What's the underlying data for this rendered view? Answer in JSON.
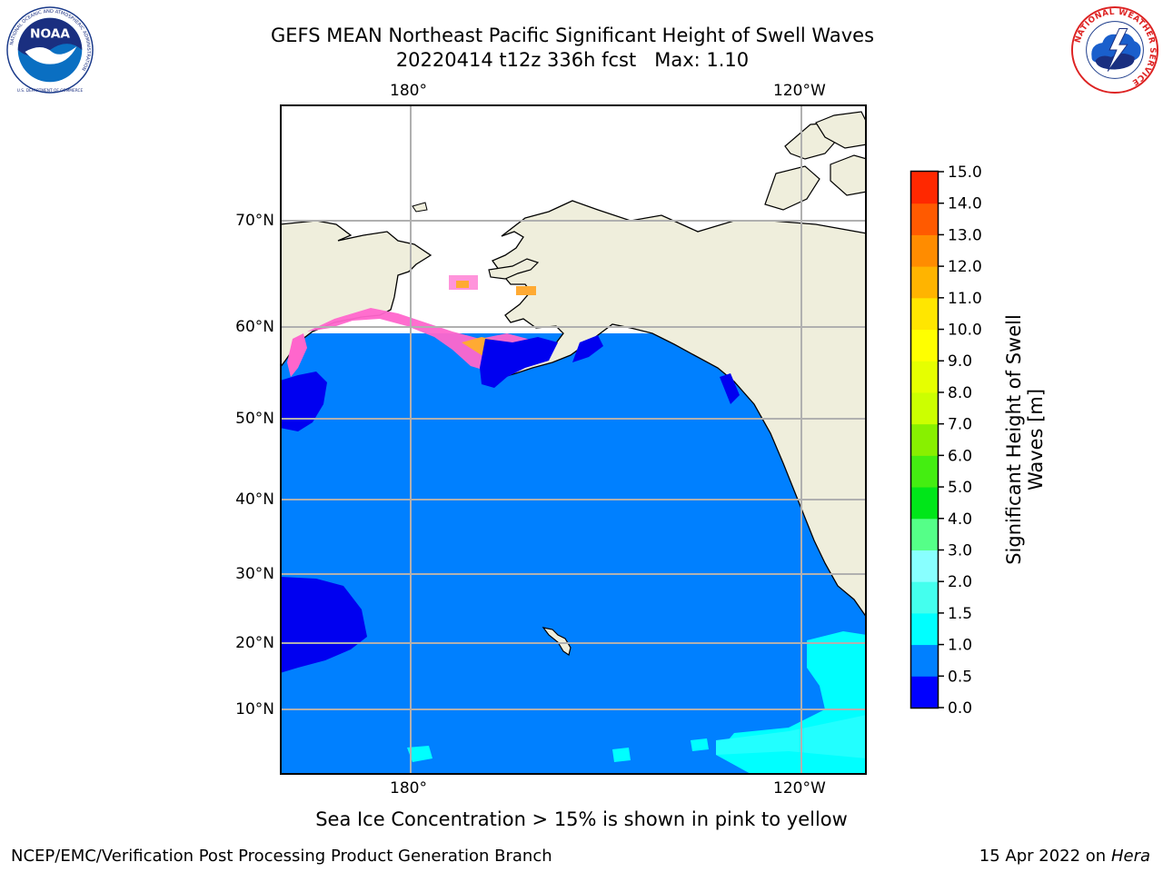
{
  "header": {
    "title_line1": "GEFS MEAN Northeast Pacific Significant Height of Swell Waves",
    "title_line2": "20220414 t12z 336h fcst   Max: 1.10"
  },
  "logos": {
    "noaa": {
      "text": "NOAA",
      "ring_text": "NATIONAL OCEANIC AND ATMOSPHERIC ADMINISTRATION",
      "bottom_text": "U.S. DEPARTMENT OF COMMERCE"
    },
    "nws": {
      "ring_text": "NATIONAL WEATHER SERVICE"
    }
  },
  "map": {
    "longitude_labels": [
      "180°",
      "120°W"
    ],
    "latitude_labels": [
      "70°N",
      "60°N",
      "50°N",
      "40°N",
      "30°N",
      "20°N",
      "10°N"
    ],
    "land_color": "#efeedc",
    "ocean_color": "#0080ff",
    "low_swell_color": "#0000f0",
    "cyan_swell_color": "#00ffff",
    "ice_colors": [
      "#ff66cc",
      "#ffaa33",
      "#ffd24d"
    ],
    "grid": true
  },
  "colorbar": {
    "label": "Significant Height of Swell Waves [m]",
    "ticks": [
      "0.0",
      "0.5",
      "1.0",
      "1.5",
      "2.0",
      "3.0",
      "4.0",
      "5.0",
      "6.0",
      "7.0",
      "8.0",
      "9.0",
      "10.0",
      "11.0",
      "12.0",
      "13.0",
      "14.0",
      "15.0"
    ],
    "colors": [
      "#0000ff",
      "#0080ff",
      "#00ffff",
      "#44ffee",
      "#88ffff",
      "#55ff88",
      "#00e619",
      "#44ee11",
      "#88f000",
      "#ccff00",
      "#e6ff00",
      "#ffff00",
      "#ffe600",
      "#ffb400",
      "#ff8c00",
      "#ff5a00",
      "#ff2800"
    ]
  },
  "footer": {
    "note": "Sea Ice Concentration > 15% is shown in pink to yellow",
    "credit": "NCEP/EMC/Verification Post Processing Product Generation Branch",
    "date": "15 Apr 2022 on",
    "machine": "Hera"
  }
}
